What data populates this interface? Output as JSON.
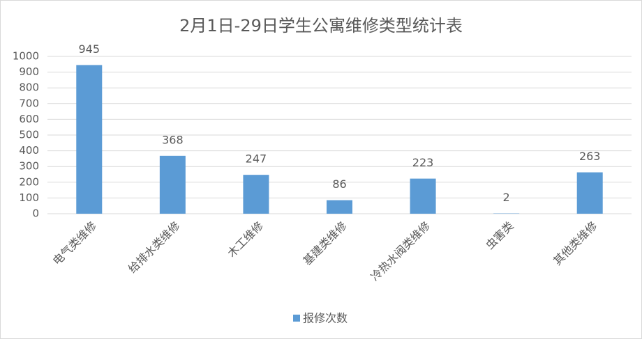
{
  "chart_data": {
    "type": "bar",
    "title": "2月1日-29日学生公寓维修类型统计表",
    "categories": [
      "电气类维修",
      "给排水类维修",
      "木工维修",
      "基建类维修",
      "冷热水阀类维修",
      "虫害类",
      "其他类维修"
    ],
    "series": [
      {
        "name": "报修次数",
        "color": "#5b9bd5",
        "values": [
          945,
          368,
          247,
          86,
          223,
          2,
          263
        ]
      }
    ],
    "ylim": [
      0,
      1000
    ],
    "yticks": [
      0,
      100,
      200,
      300,
      400,
      500,
      600,
      700,
      800,
      900,
      1000
    ],
    "grid": true,
    "legend": "bottom"
  }
}
